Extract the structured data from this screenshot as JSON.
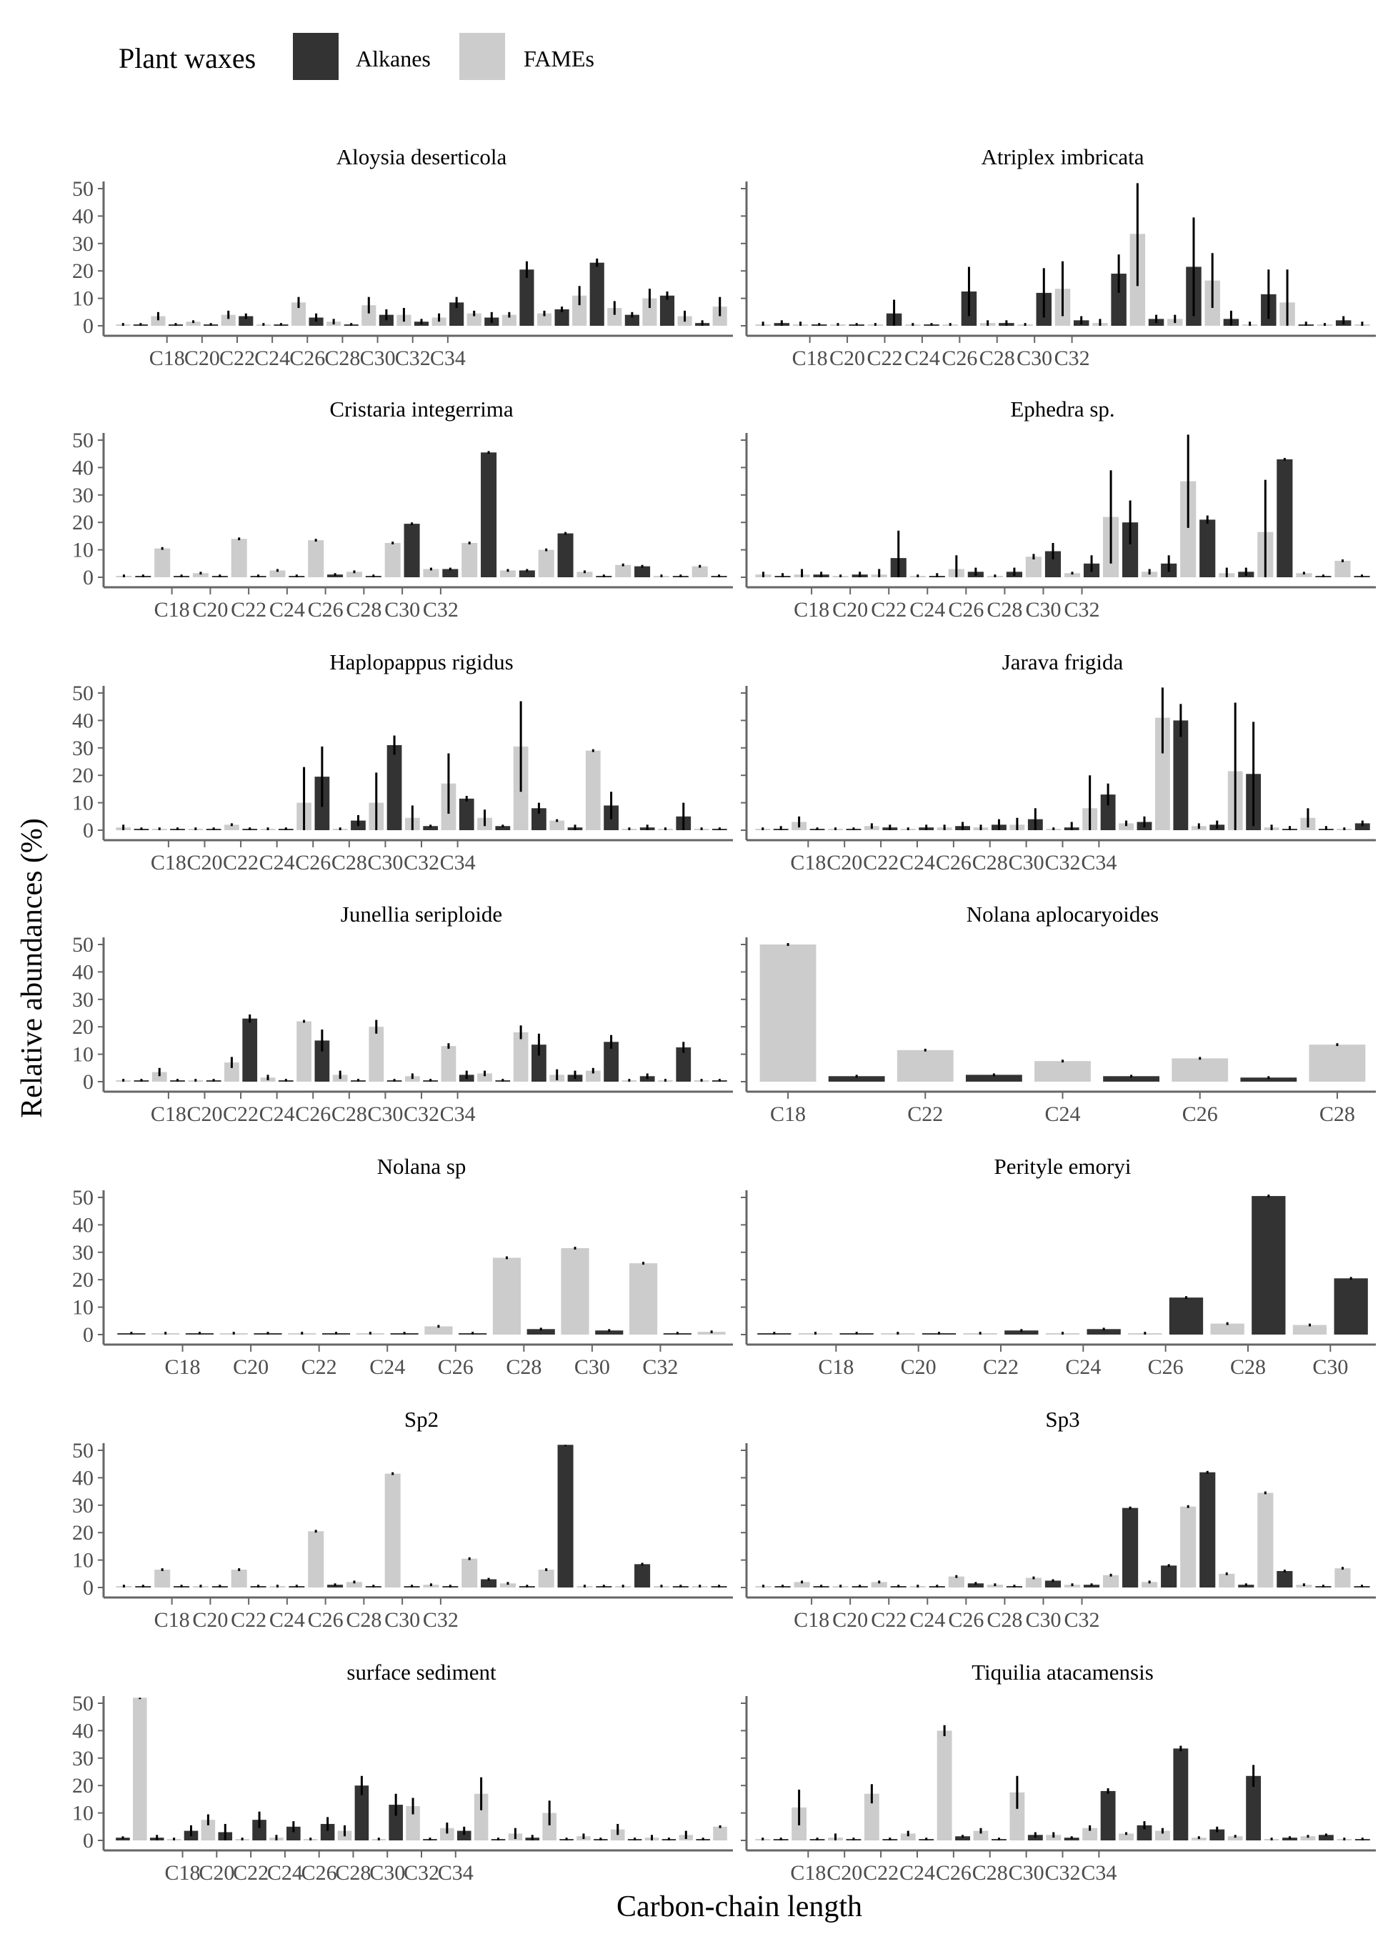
{
  "legend": {
    "title": "Plant waxes",
    "items": [
      {
        "label": "Alkanes",
        "color": "#333333"
      },
      {
        "label": "FAMEs",
        "color": "#cccccc"
      }
    ]
  },
  "axes": {
    "xlabel": "Carbon-chain length",
    "ylabel": "Relative abundances (%)",
    "y_ticks": [
      0,
      10,
      20,
      30,
      40,
      50
    ]
  },
  "chart_data": [
    {
      "type": "bar",
      "title": "Aloysia deserticola",
      "start_carbon": 16,
      "xtick_labels": [
        "C18",
        "C20",
        "C22",
        "C24",
        "C26",
        "C28",
        "C30",
        "C32",
        "C34"
      ],
      "values": [
        0.5,
        0.5,
        3.5,
        0.5,
        1.5,
        0.5,
        4,
        3.5,
        0.5,
        0.5,
        8.5,
        3,
        1.5,
        0.5,
        7.5,
        4,
        4,
        1.5,
        3,
        8.5,
        4.5,
        3,
        4,
        20.5,
        4.5,
        6,
        11,
        23,
        6.5,
        4,
        10,
        11,
        3.5,
        1,
        7
      ],
      "errors": [
        0.5,
        0.5,
        1.5,
        0.5,
        0.5,
        0.5,
        1.5,
        1,
        0.5,
        0.5,
        2,
        1.5,
        1,
        0.5,
        3,
        2,
        2.5,
        1,
        1.5,
        2,
        1,
        2,
        1,
        3,
        1,
        1,
        3.5,
        1.5,
        2.5,
        1,
        3.5,
        1.5,
        2,
        1,
        3.5
      ]
    },
    {
      "type": "bar",
      "title": "Atriplex imbricata",
      "start_carbon": 16,
      "xtick_labels": [
        "C18",
        "C20",
        "C22",
        "C24",
        "C26",
        "C28",
        "C30",
        "C32"
      ],
      "values": [
        0.5,
        1,
        0.5,
        0.5,
        0.5,
        0.5,
        0.5,
        4.5,
        0.5,
        0.5,
        0.5,
        12.5,
        1,
        1,
        0.5,
        12,
        13.5,
        2,
        1,
        19,
        33.5,
        2.5,
        2.5,
        21.5,
        16.5,
        2.5,
        0.5,
        11.5,
        8.5,
        0.5,
        0.5,
        2,
        0.5
      ],
      "errors": [
        1,
        1,
        1,
        0.5,
        0.5,
        0.5,
        0.5,
        5,
        0.5,
        0.5,
        0.5,
        9,
        1,
        1,
        0.5,
        9,
        10,
        1.5,
        1.5,
        7,
        19,
        1.5,
        1.5,
        18,
        10,
        3,
        1,
        9,
        12,
        1,
        0.5,
        1.5,
        1
      ]
    },
    {
      "type": "bar",
      "title": "Cristaria integerrima",
      "start_carbon": 16,
      "xtick_labels": [
        "C18",
        "C20",
        "C22",
        "C24",
        "C26",
        "C28",
        "C30",
        "C32"
      ],
      "values": [
        0.5,
        0.5,
        10.5,
        0.5,
        1.5,
        0.5,
        14,
        0.5,
        2.5,
        0.5,
        13.5,
        1,
        2,
        0.5,
        12.5,
        19.5,
        3,
        3,
        12.5,
        45.5,
        2.5,
        2.5,
        10,
        16,
        2,
        0.5,
        4.5,
        4,
        0.5,
        0.5,
        4,
        0.5
      ],
      "errors": [
        0.5,
        0.5,
        0.5,
        0.5,
        0.5,
        0.5,
        0.5,
        0.5,
        0.5,
        0.5,
        0.5,
        0.5,
        0.5,
        0.5,
        0.5,
        0.5,
        0.5,
        0.5,
        0.5,
        0.5,
        0.5,
        0.5,
        0.5,
        0.5,
        0.5,
        0.5,
        0.5,
        0.5,
        0.5,
        0.5,
        0.5,
        0.5
      ]
    },
    {
      "type": "bar",
      "title": "Ephedra sp.",
      "start_carbon": 16,
      "xtick_labels": [
        "C18",
        "C20",
        "C22",
        "C24",
        "C26",
        "C28",
        "C30",
        "C32"
      ],
      "values": [
        1,
        0.5,
        1,
        1,
        0.5,
        1,
        1,
        7,
        0.5,
        0.5,
        3,
        2,
        0.5,
        2,
        7.5,
        9.5,
        1.5,
        5,
        22,
        20,
        2,
        5,
        35,
        21,
        1.5,
        2,
        16.5,
        43,
        1.5,
        0.5,
        6,
        0.5
      ],
      "errors": [
        1,
        1,
        2,
        1,
        0.5,
        1,
        2,
        10,
        0.5,
        1,
        5,
        1.5,
        0.5,
        1.5,
        1,
        3,
        0.5,
        3,
        17,
        8,
        1,
        3,
        17,
        1.5,
        2,
        1.5,
        19,
        0.5,
        0.5,
        0.5,
        0.5,
        0.5
      ]
    },
    {
      "type": "bar",
      "title": "Haplopappus rigidus",
      "start_carbon": 16,
      "xtick_labels": [
        "C18",
        "C20",
        "C22",
        "C24",
        "C26",
        "C28",
        "C30",
        "C32",
        "C34"
      ],
      "values": [
        1,
        0.5,
        0.5,
        0.5,
        0.5,
        0.5,
        2,
        0.5,
        0.5,
        0.5,
        10,
        19.5,
        0.5,
        3.5,
        10,
        31,
        4.5,
        1.5,
        17,
        11.5,
        4.5,
        1.5,
        30.5,
        8,
        3.5,
        1,
        29,
        9,
        0.5,
        1,
        0.5,
        5,
        0.5,
        0.5
      ],
      "errors": [
        1,
        0.5,
        0.5,
        0.5,
        0.5,
        0.5,
        0.5,
        0.5,
        0.5,
        0.5,
        13,
        11,
        0.5,
        2,
        11,
        3.5,
        4.5,
        0.5,
        11,
        1,
        3,
        0.5,
        16.5,
        2,
        0.5,
        1,
        0.5,
        5,
        0.5,
        1,
        0.5,
        5,
        0.5,
        0.5
      ]
    },
    {
      "type": "bar",
      "title": "Jarava frigida",
      "start_carbon": 16,
      "xtick_labels": [
        "C18",
        "C20",
        "C22",
        "C24",
        "C26",
        "C28",
        "C30",
        "C32",
        "C34"
      ],
      "values": [
        0.5,
        0.5,
        3,
        0.5,
        0.5,
        0.5,
        1.5,
        1,
        0.5,
        1,
        1,
        1.5,
        1,
        2,
        2,
        4,
        0.5,
        1,
        8,
        13,
        2.5,
        3,
        41,
        40,
        1.5,
        2,
        21.5,
        20.5,
        1,
        0.5,
        4.5,
        0.5,
        0.5,
        2.5
      ],
      "errors": [
        0.5,
        1,
        2,
        0.5,
        0.5,
        0.5,
        1,
        1,
        0.5,
        1,
        1,
        1.5,
        1,
        2,
        2.5,
        4,
        0.5,
        2,
        12,
        4,
        1,
        2,
        13,
        6,
        1,
        1.5,
        25,
        19,
        1,
        1,
        3.5,
        1,
        0.5,
        1
      ]
    },
    {
      "type": "bar",
      "title": "Junellia seriploide",
      "start_carbon": 16,
      "xtick_labels": [
        "C18",
        "C20",
        "C22",
        "C24",
        "C26",
        "C28",
        "C30",
        "C32",
        "C34"
      ],
      "values": [
        0.5,
        0.5,
        3.5,
        0.5,
        0.5,
        0.5,
        7,
        23,
        1.5,
        0.5,
        22,
        15,
        2.5,
        0.5,
        20,
        0.5,
        2,
        0.5,
        13,
        2.5,
        3,
        0.5,
        18,
        13.5,
        2.5,
        2.5,
        4,
        14.5,
        0.5,
        2,
        0.5,
        12.5,
        0.5,
        0.5
      ],
      "errors": [
        0.5,
        0.5,
        1.5,
        0.5,
        0.5,
        0.5,
        2,
        1.5,
        1,
        0.5,
        0.5,
        4,
        1.5,
        0.5,
        2.5,
        0.5,
        1,
        0.5,
        1,
        1.5,
        1,
        0.5,
        2.5,
        4,
        2,
        1.5,
        1,
        2.5,
        0.5,
        1,
        0.5,
        2,
        0.5,
        0.5
      ]
    },
    {
      "type": "bar",
      "title": "Nolana aplocaryoides",
      "start_carbon": 18,
      "xtick_labels": [
        "C18",
        "C22",
        "C24",
        "C26",
        "C28"
      ],
      "values": [
        50,
        2,
        11.5,
        2.5,
        7.5,
        2,
        8.5,
        1.5,
        13.5
      ],
      "errors": [
        0.5,
        0.5,
        0.5,
        0.5,
        0.5,
        0.5,
        0.5,
        0.5,
        0.5
      ]
    },
    {
      "type": "bar",
      "title": "Nolana sp",
      "start_carbon": 17,
      "xtick_labels": [
        "C18",
        "C20",
        "C22",
        "C24",
        "C26",
        "C28",
        "C30",
        "C32"
      ],
      "values": [
        0.5,
        0.5,
        0.5,
        0.5,
        0.5,
        0.5,
        0.5,
        0.5,
        0.5,
        3,
        0.5,
        28,
        2,
        31.5,
        1.5,
        26,
        0.5,
        1
      ],
      "errors": [
        0.5,
        0.5,
        0.5,
        0.5,
        0.5,
        0.5,
        0.5,
        0.5,
        0.5,
        0.5,
        0.5,
        0.5,
        0.5,
        0.5,
        0.5,
        0.5,
        0.5,
        0.5
      ]
    },
    {
      "type": "bar",
      "title": "Perityle emoryi",
      "start_carbon": 17,
      "xtick_labels": [
        "C18",
        "C20",
        "C22",
        "C24",
        "C26",
        "C28",
        "C30"
      ],
      "values": [
        0.5,
        0.5,
        0.5,
        0.5,
        0.5,
        0.5,
        1.5,
        0.5,
        2,
        0.5,
        13.5,
        4,
        50.5,
        3.5,
        20.5
      ],
      "errors": [
        0.5,
        0.5,
        0.5,
        0.5,
        0.5,
        0.5,
        0.5,
        0.5,
        0.5,
        0.5,
        0.5,
        0.5,
        0.5,
        0.5,
        0.5
      ]
    },
    {
      "type": "bar",
      "title": "Sp2",
      "start_carbon": 16,
      "xtick_labels": [
        "C18",
        "C20",
        "C22",
        "C24",
        "C26",
        "C28",
        "C30",
        "C32"
      ],
      "values": [
        0.5,
        0.5,
        6.5,
        0.5,
        0.5,
        0.5,
        6.5,
        0.5,
        0.5,
        0.5,
        20.5,
        1,
        2,
        0.5,
        41.5,
        0.5,
        1,
        0.5,
        10.5,
        3,
        1.5,
        0.5,
        6.5,
        52,
        0.5,
        0.5,
        0.5,
        8.5,
        0.5,
        0.5,
        0.5,
        0.5
      ],
      "errors": [
        0.5,
        0.5,
        0.5,
        0.5,
        0.5,
        0.5,
        0.5,
        0.5,
        0.5,
        0.5,
        0.5,
        0.5,
        0.5,
        0.5,
        0.5,
        0.5,
        0.5,
        0.5,
        0.5,
        0.5,
        0.5,
        0.5,
        0.5,
        0.5,
        0.5,
        0.5,
        0.5,
        0.5,
        0.5,
        0.5,
        0.5,
        0.5
      ]
    },
    {
      "type": "bar",
      "title": "Sp3",
      "start_carbon": 16,
      "xtick_labels": [
        "C18",
        "C20",
        "C22",
        "C24",
        "C26",
        "C28",
        "C30",
        "C32"
      ],
      "values": [
        0.5,
        0.5,
        2,
        0.5,
        0.5,
        0.5,
        2,
        0.5,
        0.5,
        0.5,
        4,
        1.5,
        1,
        0.5,
        3.5,
        2.5,
        1,
        1,
        4.5,
        29,
        2,
        8,
        29.5,
        42,
        5,
        1,
        34.5,
        6,
        1,
        0.5,
        7,
        0.5
      ],
      "errors": [
        0.5,
        0.5,
        0.5,
        0.5,
        0.5,
        0.5,
        0.5,
        0.5,
        0.5,
        0.5,
        0.5,
        0.5,
        0.5,
        0.5,
        0.5,
        0.5,
        0.5,
        0.5,
        0.5,
        0.5,
        0.5,
        0.5,
        0.5,
        0.5,
        0.5,
        0.5,
        0.5,
        0.5,
        0.5,
        0.5,
        0.5,
        0.5
      ]
    },
    {
      "type": "bar",
      "title": "surface sediment",
      "start_carbon": 15,
      "xtick_labels": [
        "C18",
        "C20",
        "C22",
        "C24",
        "C26",
        "C28",
        "C30",
        "C32",
        "C34"
      ],
      "values": [
        1,
        52,
        1,
        0.5,
        3.5,
        7.5,
        3,
        0.5,
        7.5,
        1,
        5,
        0.5,
        6,
        3.5,
        20,
        0.5,
        13,
        12.5,
        0.5,
        4.5,
        3.5,
        17,
        0.5,
        2.5,
        1,
        10,
        0.5,
        1.5,
        0.5,
        4,
        0.5,
        1,
        0.5,
        2,
        0.5,
        5
      ],
      "errors": [
        0.5,
        0.5,
        1,
        0.5,
        2,
        2,
        3,
        0.5,
        3,
        1,
        2,
        0.5,
        2.5,
        2,
        3.5,
        0.5,
        4,
        3,
        0.5,
        2,
        1.5,
        6,
        0.5,
        2,
        1,
        4.5,
        0.5,
        1,
        0.5,
        2,
        0.5,
        1,
        0.5,
        1.5,
        0.5,
        0.5
      ]
    },
    {
      "type": "bar",
      "title": "Tiquilia atacamensis",
      "start_carbon": 16,
      "xtick_labels": [
        "C18",
        "C20",
        "C22",
        "C24",
        "C26",
        "C28",
        "C30",
        "C32",
        "C34"
      ],
      "values": [
        0.5,
        0.5,
        12,
        0.5,
        1,
        0.5,
        17,
        0.5,
        2.5,
        0.5,
        40,
        1.5,
        3.5,
        0.5,
        17.5,
        2,
        2,
        1,
        4.5,
        18,
        2.5,
        5.5,
        3.5,
        33.5,
        1,
        4,
        1.5,
        23.5,
        0.5,
        1,
        1.5,
        2,
        0.5,
        0.5
      ],
      "errors": [
        0.5,
        0.5,
        6.5,
        0.5,
        1.5,
        0.5,
        3.5,
        0.5,
        1,
        0.5,
        2,
        0.5,
        1,
        0.5,
        6,
        1,
        1,
        0.5,
        1,
        1,
        0.5,
        1.5,
        1,
        1,
        0.5,
        1,
        0.5,
        4,
        0.5,
        0.5,
        0.5,
        0.5,
        0.5,
        0.5
      ]
    }
  ]
}
